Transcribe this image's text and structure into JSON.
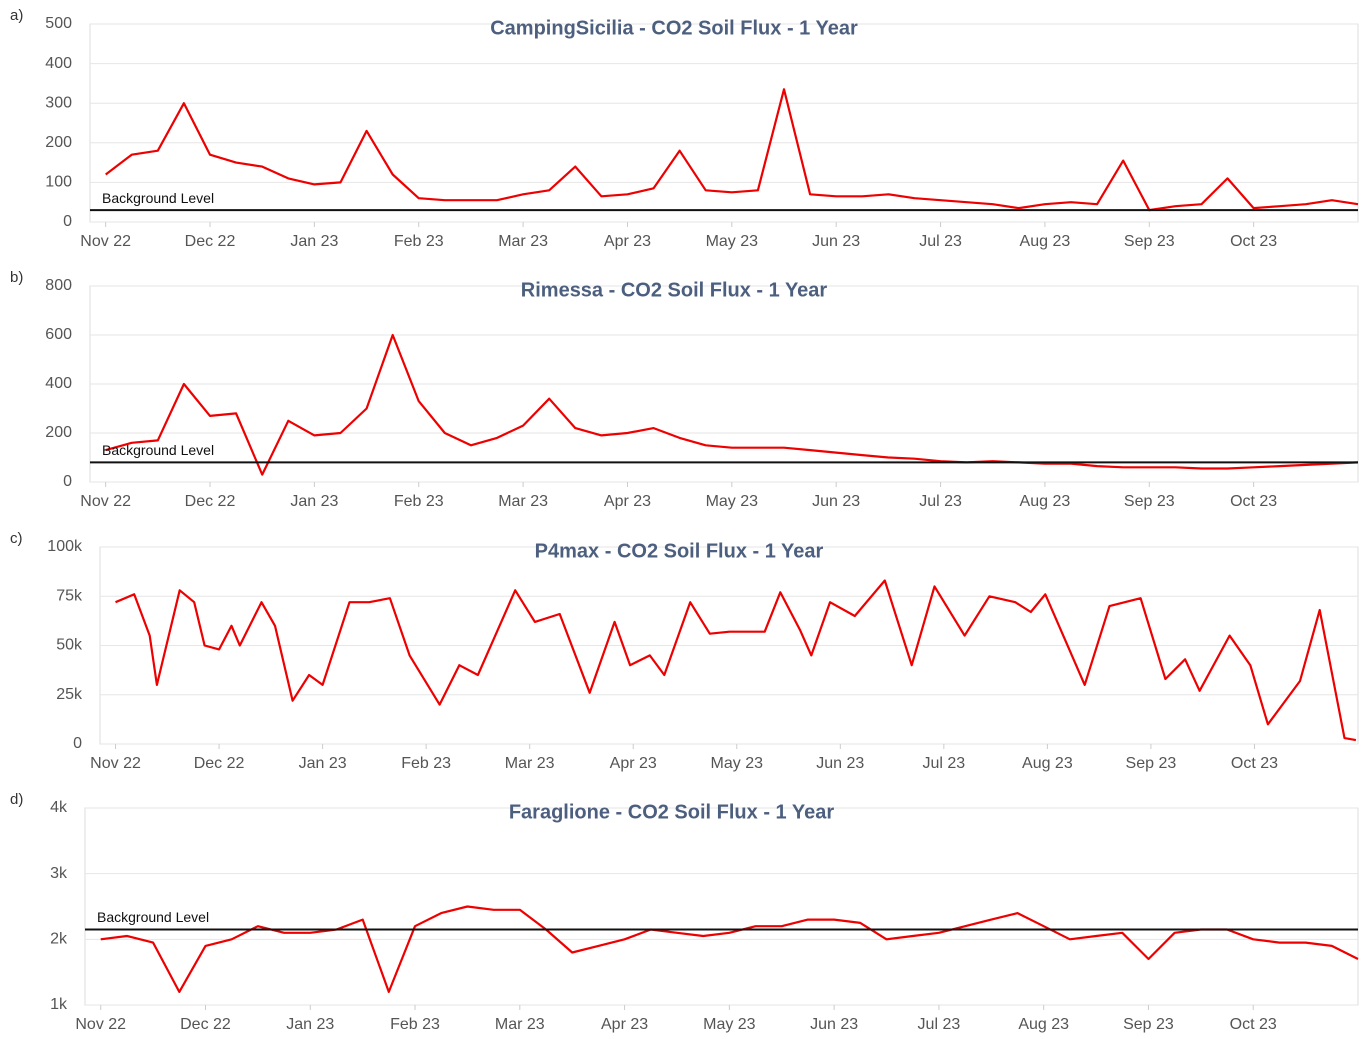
{
  "chart_data": [
    {
      "type": "line",
      "panel_label": "a)",
      "title": "CampingSicilia - CO2 Soil Flux - 1 Year",
      "color": "#ee0000",
      "x": [
        0,
        0.25,
        0.5,
        0.75,
        1,
        1.25,
        1.5,
        1.75,
        2,
        2.25,
        2.5,
        2.75,
        3,
        3.25,
        3.5,
        3.75,
        4,
        4.25,
        4.5,
        4.75,
        5,
        5.25,
        5.5,
        5.75,
        6,
        6.25,
        6.5,
        6.75,
        7,
        7.25,
        7.5,
        7.75,
        8,
        8.25,
        8.5,
        8.75,
        9,
        9.25,
        9.5,
        9.75,
        10,
        10.25,
        10.5,
        10.75,
        11,
        11.25,
        11.5,
        11.75,
        12
      ],
      "values": [
        120,
        170,
        180,
        300,
        170,
        150,
        140,
        110,
        95,
        100,
        230,
        120,
        60,
        55,
        55,
        55,
        70,
        80,
        140,
        65,
        70,
        85,
        180,
        80,
        75,
        80,
        335,
        70,
        65,
        65,
        70,
        60,
        55,
        50,
        45,
        35,
        45,
        50,
        45,
        155,
        30,
        40,
        45,
        110,
        35,
        40,
        45,
        55,
        45
      ],
      "xlim": [
        -0.15,
        12
      ],
      "xticks": [
        {
          "value": 0,
          "label": "Nov 22"
        },
        {
          "value": 1,
          "label": "Dec 22"
        },
        {
          "value": 2,
          "label": "Jan 23"
        },
        {
          "value": 3,
          "label": "Feb 23"
        },
        {
          "value": 4,
          "label": "Mar 23"
        },
        {
          "value": 5,
          "label": "Apr 23"
        },
        {
          "value": 6,
          "label": "May 23"
        },
        {
          "value": 7,
          "label": "Jun 23"
        },
        {
          "value": 8,
          "label": "Jul 23"
        },
        {
          "value": 9,
          "label": "Aug 23"
        },
        {
          "value": 10,
          "label": "Sep 23"
        },
        {
          "value": 11,
          "label": "Oct 23"
        }
      ],
      "ylim": [
        0,
        500
      ],
      "yticks": [
        0,
        100,
        200,
        300,
        400,
        500
      ],
      "grid": true,
      "reference_line": {
        "label": "Background Level",
        "value": 30,
        "color": "#111111"
      }
    },
    {
      "type": "line",
      "panel_label": "b)",
      "title": "Rimessa - CO2 Soil Flux - 1 Year",
      "color": "#ee0000",
      "x": [
        0,
        0.25,
        0.5,
        0.75,
        1,
        1.25,
        1.5,
        1.75,
        2,
        2.25,
        2.5,
        2.75,
        3,
        3.25,
        3.5,
        3.75,
        4,
        4.25,
        4.5,
        4.75,
        5,
        5.25,
        5.5,
        5.75,
        6,
        6.25,
        6.5,
        6.75,
        7,
        7.25,
        7.5,
        7.75,
        8,
        8.25,
        8.5,
        8.75,
        9,
        9.25,
        9.5,
        9.75,
        10,
        10.25,
        10.5,
        10.75,
        11,
        11.25,
        11.5,
        11.75,
        12
      ],
      "values": [
        130,
        160,
        170,
        400,
        270,
        280,
        30,
        250,
        190,
        200,
        300,
        600,
        330,
        200,
        150,
        180,
        230,
        340,
        220,
        190,
        200,
        220,
        180,
        150,
        140,
        140,
        140,
        130,
        120,
        110,
        100,
        95,
        85,
        80,
        85,
        80,
        75,
        75,
        65,
        60,
        60,
        60,
        55,
        55,
        60,
        65,
        70,
        75,
        80
      ],
      "xlim": [
        -0.15,
        12
      ],
      "xticks": [
        {
          "value": 0,
          "label": "Nov 22"
        },
        {
          "value": 1,
          "label": "Dec 22"
        },
        {
          "value": 2,
          "label": "Jan 23"
        },
        {
          "value": 3,
          "label": "Feb 23"
        },
        {
          "value": 4,
          "label": "Mar 23"
        },
        {
          "value": 5,
          "label": "Apr 23"
        },
        {
          "value": 6,
          "label": "May 23"
        },
        {
          "value": 7,
          "label": "Jun 23"
        },
        {
          "value": 8,
          "label": "Jul 23"
        },
        {
          "value": 9,
          "label": "Aug 23"
        },
        {
          "value": 10,
          "label": "Sep 23"
        },
        {
          "value": 11,
          "label": "Oct 23"
        }
      ],
      "ylim": [
        0,
        800
      ],
      "yticks": [
        0,
        200,
        400,
        600,
        800
      ],
      "grid": true,
      "reference_line": {
        "label": "Background Level",
        "value": 80,
        "color": "#111111"
      }
    },
    {
      "type": "line",
      "panel_label": "c)",
      "title": "P4max - CO2 Soil Flux - 1 Year",
      "color": "#ee0000",
      "x": [
        0,
        0.18,
        0.33,
        0.4,
        0.62,
        0.76,
        0.86,
        1.0,
        1.12,
        1.2,
        1.41,
        1.54,
        1.71,
        1.87,
        2.0,
        2.26,
        2.45,
        2.65,
        2.84,
        3.13,
        3.32,
        3.5,
        3.86,
        4.05,
        4.29,
        4.58,
        4.82,
        4.97,
        5.16,
        5.3,
        5.55,
        5.74,
        5.93,
        6.27,
        6.42,
        6.61,
        6.72,
        6.9,
        7.14,
        7.43,
        7.69,
        7.91,
        8.2,
        8.44,
        8.69,
        8.84,
        8.98,
        9.36,
        9.6,
        9.9,
        10.14,
        10.33,
        10.47,
        10.76,
        10.96,
        11.13,
        11.44,
        11.63,
        11.87,
        11.98
      ],
      "values": [
        72000,
        76000,
        55000,
        30000,
        78000,
        72000,
        50000,
        48000,
        60000,
        50000,
        72000,
        60000,
        22000,
        35000,
        30000,
        72000,
        72000,
        74000,
        45000,
        20000,
        40000,
        35000,
        78000,
        62000,
        66000,
        26000,
        62000,
        40000,
        45000,
        35000,
        72000,
        56000,
        57000,
        57000,
        77000,
        58000,
        45000,
        72000,
        65000,
        83000,
        40000,
        80000,
        55000,
        75000,
        72000,
        67000,
        76000,
        30000,
        70000,
        74000,
        33000,
        43000,
        27000,
        55000,
        40000,
        10000,
        32000,
        68000,
        3000,
        2000
      ],
      "xlim": [
        -0.15,
        12
      ],
      "xticks": [
        {
          "value": 0,
          "label": "Nov 22"
        },
        {
          "value": 1,
          "label": "Dec 22"
        },
        {
          "value": 2,
          "label": "Jan 23"
        },
        {
          "value": 3,
          "label": "Feb 23"
        },
        {
          "value": 4,
          "label": "Mar 23"
        },
        {
          "value": 5,
          "label": "Apr 23"
        },
        {
          "value": 6,
          "label": "May 23"
        },
        {
          "value": 7,
          "label": "Jun 23"
        },
        {
          "value": 8,
          "label": "Jul 23"
        },
        {
          "value": 9,
          "label": "Aug 23"
        },
        {
          "value": 10,
          "label": "Sep 23"
        },
        {
          "value": 11,
          "label": "Oct 23"
        }
      ],
      "ylim": [
        0,
        100000
      ],
      "yticks": [
        0,
        {
          "value": 25000,
          "label": "25k"
        },
        {
          "value": 50000,
          "label": "50k"
        },
        {
          "value": 75000,
          "label": "75k"
        },
        {
          "value": 100000,
          "label": "100k"
        }
      ],
      "grid": true
    },
    {
      "type": "line",
      "panel_label": "d)",
      "title": "Faraglione - CO2 Soil Flux - 1 Year",
      "color": "#ee0000",
      "x": [
        0,
        0.25,
        0.5,
        0.75,
        1,
        1.25,
        1.5,
        1.75,
        2,
        2.25,
        2.5,
        2.75,
        3,
        3.25,
        3.5,
        3.75,
        4,
        4.25,
        4.5,
        4.75,
        5,
        5.25,
        5.5,
        5.75,
        6,
        6.25,
        6.5,
        6.75,
        7,
        7.25,
        7.5,
        7.75,
        8,
        8.25,
        8.5,
        8.75,
        9,
        9.25,
        9.5,
        9.75,
        10,
        10.25,
        10.5,
        10.75,
        11,
        11.25,
        11.5,
        11.75,
        12
      ],
      "values": [
        2000,
        2050,
        1950,
        1200,
        1900,
        2000,
        2200,
        2100,
        2100,
        2150,
        2300,
        1200,
        2200,
        2400,
        2500,
        2450,
        2450,
        2150,
        1800,
        1900,
        2000,
        2150,
        2100,
        2050,
        2100,
        2200,
        2200,
        2300,
        2300,
        2250,
        2000,
        2050,
        2100,
        2200,
        2300,
        2400,
        2200,
        2000,
        2050,
        2100,
        1700,
        2100,
        2150,
        2150,
        2000,
        1950,
        1950,
        1900,
        1700
      ],
      "xlim": [
        -0.15,
        12
      ],
      "xticks": [
        {
          "value": 0,
          "label": "Nov 22"
        },
        {
          "value": 1,
          "label": "Dec 22"
        },
        {
          "value": 2,
          "label": "Jan 23"
        },
        {
          "value": 3,
          "label": "Feb 23"
        },
        {
          "value": 4,
          "label": "Mar 23"
        },
        {
          "value": 5,
          "label": "Apr 23"
        },
        {
          "value": 6,
          "label": "May 23"
        },
        {
          "value": 7,
          "label": "Jun 23"
        },
        {
          "value": 8,
          "label": "Jul 23"
        },
        {
          "value": 9,
          "label": "Aug 23"
        },
        {
          "value": 10,
          "label": "Sep 23"
        },
        {
          "value": 11,
          "label": "Oct 23"
        }
      ],
      "ylim": [
        1000,
        4000
      ],
      "yticks": [
        {
          "value": 1000,
          "label": "1k"
        },
        {
          "value": 2000,
          "label": "2k"
        },
        {
          "value": 3000,
          "label": "3k"
        },
        {
          "value": 4000,
          "label": "4k"
        }
      ],
      "grid": true,
      "reference_line": {
        "label": "Background Level",
        "value": 2150,
        "color": "#111111"
      }
    }
  ]
}
